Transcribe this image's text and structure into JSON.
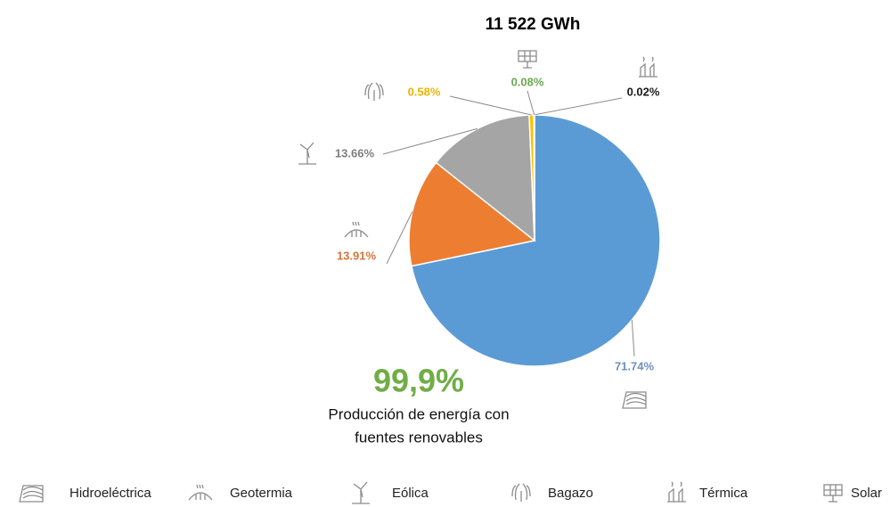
{
  "chart_data": {
    "type": "pie",
    "title": "11 522 GWh",
    "categories": [
      "Hidroeléctrica",
      "Geotermia",
      "Eólica",
      "Bagazo",
      "Térmica",
      "Solar"
    ],
    "values": [
      71.74,
      13.91,
      13.66,
      0.58,
      0.02,
      0.08
    ],
    "value_labels": [
      "71.74%",
      "13.91%",
      "13.66%",
      "0.58%",
      "0.02%",
      "0.08%"
    ],
    "colors": [
      "#5b9bd5",
      "#ed7d31",
      "#a5a5a5",
      "#ffc000",
      "#404040",
      "#70ad47"
    ],
    "label_colors": [
      "#6f8fbf",
      "#d9733a",
      "#7f7f7f",
      "#f0b400",
      "#1a1a1a",
      "#6aa84f"
    ],
    "annotation": {
      "value": "99,9%",
      "text": [
        "Producción de energía con",
        "fuentes renovables"
      ]
    },
    "legend": true
  }
}
